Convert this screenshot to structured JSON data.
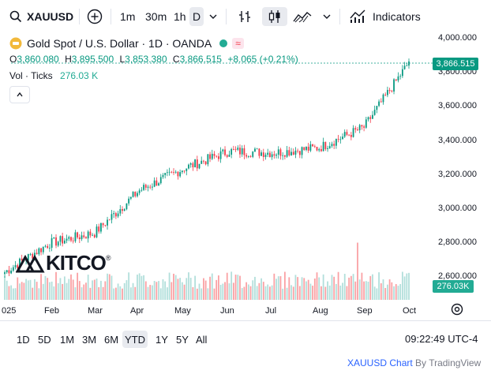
{
  "toolbar": {
    "symbol": "XAUUSD",
    "timeframes": [
      "1m",
      "30m",
      "1h",
      "D"
    ],
    "indicators_label": "Indicators"
  },
  "legend": {
    "title": "Gold Spot / U.S. Dollar · 1D · OANDA",
    "badge": "≈",
    "open_k": "O",
    "open_v": "3,860.080",
    "high_k": "H",
    "high_v": "3,895.500",
    "low_k": "L",
    "low_v": "3,853.380",
    "close_k": "C",
    "close_v": "3,866.515",
    "change": "+8.065 (+0.21%)",
    "vol_label": "Vol · Ticks",
    "vol_value": "276.03 K"
  },
  "price_axis": [
    "4,000.000",
    "3,800.000",
    "3,600.000",
    "3,400.000",
    "3,200.000",
    "3,000.000",
    "2,800.000",
    "2,600.000"
  ],
  "price_tag": "3,866.515",
  "vol_tag": "276.03K",
  "time_axis": [
    "025",
    "Feb",
    "Mar",
    "Apr",
    "May",
    "Jun",
    "Jul",
    "Aug",
    "Sep",
    "Oct"
  ],
  "ranges": [
    "1D",
    "5D",
    "1M",
    "3M",
    "6M",
    "YTD",
    "1Y",
    "5Y",
    "All"
  ],
  "active_range": "YTD",
  "clock": "09:22:49 UTC-4",
  "watermark": "KITCO",
  "footer": {
    "symbol": "XAUUSD",
    "chart": "Chart",
    "by": "By",
    "brand": "TradingView"
  },
  "colors": {
    "up": "#089981",
    "down": "#f23645",
    "vol_up": "#b2dfdb",
    "vol_down": "#faa1a4",
    "accent": "#2962ff"
  },
  "chart_data": {
    "type": "candlestick",
    "symbol": "XAUUSD",
    "interval": "1D",
    "x_range": [
      "Jan",
      "Oct"
    ],
    "ylim": [
      2600,
      4000
    ],
    "last_close": 3866.515,
    "approx_closes_by_month_start": {
      "Jan": 2630,
      "Feb": 2800,
      "Mar": 2860,
      "Apr": 3110,
      "May": 3240,
      "Jun": 3340,
      "Jul": 3330,
      "Aug": 3360,
      "Sep": 3480,
      "Oct": 3860
    }
  }
}
